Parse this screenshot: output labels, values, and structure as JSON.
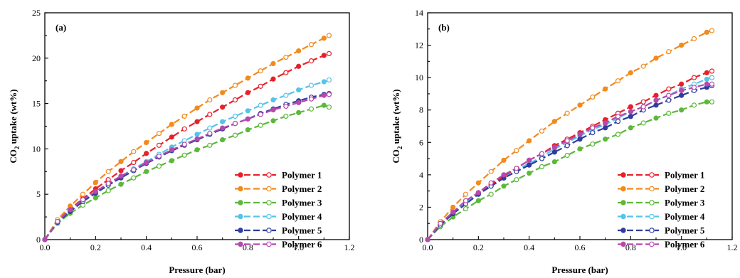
{
  "chart_data": [
    {
      "type": "line",
      "panel_label": "(a)",
      "xlabel": "Pressure (bar)",
      "ylabel": "CO2 uptake (wt%)",
      "ylabel_parts": {
        "pre": "CO",
        "sub": "2",
        "post": " uptake (wt%)"
      },
      "xlim": [
        0,
        1.2
      ],
      "ylim": [
        0,
        25
      ],
      "xticks": [
        "0.0",
        "0.2",
        "0.4",
        "0.6",
        "0.8",
        "1.0",
        "1.2"
      ],
      "yticks": [
        "0",
        "5",
        "10",
        "15",
        "20",
        "25"
      ],
      "legend_position": "bottom-right",
      "grid": false,
      "series": [
        {
          "name": "Polymer 1",
          "color": "#e8202a",
          "x": [
            0,
            0.05,
            0.1,
            0.15,
            0.2,
            0.25,
            0.3,
            0.35,
            0.4,
            0.45,
            0.5,
            0.55,
            0.6,
            0.65,
            0.7,
            0.75,
            0.8,
            0.85,
            0.9,
            0.95,
            1.0,
            1.05,
            1.1,
            1.12
          ],
          "y": [
            0,
            2.0,
            3.4,
            4.5,
            5.6,
            6.6,
            7.6,
            8.5,
            9.5,
            10.4,
            11.3,
            12.2,
            13.0,
            13.8,
            14.6,
            15.4,
            16.2,
            16.9,
            17.7,
            18.4,
            19.1,
            19.7,
            20.3,
            20.5
          ]
        },
        {
          "name": "Polymer 2",
          "color": "#f28a1c",
          "x": [
            0,
            0.05,
            0.1,
            0.15,
            0.2,
            0.25,
            0.3,
            0.35,
            0.4,
            0.45,
            0.5,
            0.55,
            0.6,
            0.65,
            0.7,
            0.75,
            0.8,
            0.85,
            0.9,
            0.95,
            1.0,
            1.05,
            1.1,
            1.12
          ],
          "y": [
            0,
            2.2,
            3.7,
            5.0,
            6.3,
            7.5,
            8.6,
            9.7,
            10.7,
            11.7,
            12.7,
            13.6,
            14.5,
            15.4,
            16.2,
            17.0,
            17.8,
            18.6,
            19.4,
            20.1,
            20.8,
            21.5,
            22.2,
            22.5
          ]
        },
        {
          "name": "Polymer 3",
          "color": "#5cb83a",
          "x": [
            0,
            0.05,
            0.1,
            0.15,
            0.2,
            0.25,
            0.3,
            0.35,
            0.4,
            0.45,
            0.5,
            0.55,
            0.6,
            0.65,
            0.7,
            0.75,
            0.8,
            0.85,
            0.9,
            0.95,
            1.0,
            1.05,
            1.1,
            1.12
          ],
          "y": [
            0,
            1.8,
            2.9,
            3.8,
            4.6,
            5.4,
            6.1,
            6.8,
            7.5,
            8.1,
            8.7,
            9.3,
            9.9,
            10.4,
            11.0,
            11.5,
            12.1,
            12.6,
            13.1,
            13.6,
            14.0,
            14.4,
            14.8,
            14.6
          ]
        },
        {
          "name": "Polymer 4",
          "color": "#56c3e8",
          "x": [
            0,
            0.05,
            0.1,
            0.15,
            0.2,
            0.25,
            0.3,
            0.35,
            0.4,
            0.45,
            0.5,
            0.55,
            0.6,
            0.65,
            0.7,
            0.75,
            0.8,
            0.85,
            0.9,
            0.95,
            1.0,
            1.05,
            1.1,
            1.12
          ],
          "y": [
            0,
            1.9,
            3.2,
            4.3,
            5.2,
            6.1,
            7.0,
            7.8,
            8.6,
            9.4,
            10.2,
            10.9,
            11.6,
            12.3,
            13.0,
            13.6,
            14.2,
            14.8,
            15.4,
            15.9,
            16.5,
            17.0,
            17.4,
            17.6
          ]
        },
        {
          "name": "Polymer 5",
          "color": "#2f3d9c",
          "x": [
            0,
            0.05,
            0.1,
            0.15,
            0.2,
            0.25,
            0.3,
            0.35,
            0.4,
            0.45,
            0.5,
            0.55,
            0.6,
            0.65,
            0.7,
            0.75,
            0.8,
            0.85,
            0.9,
            0.95,
            1.0,
            1.05,
            1.1,
            1.12
          ],
          "y": [
            0,
            1.9,
            3.1,
            4.2,
            5.1,
            6.0,
            6.8,
            7.6,
            8.4,
            9.1,
            9.8,
            10.4,
            11.0,
            11.6,
            12.2,
            12.8,
            13.3,
            13.9,
            14.4,
            14.9,
            15.3,
            15.7,
            16.0,
            16.1
          ]
        },
        {
          "name": "Polymer 6",
          "color": "#b649ad",
          "x": [
            0,
            0.05,
            0.1,
            0.15,
            0.2,
            0.25,
            0.3,
            0.35,
            0.4,
            0.45,
            0.5,
            0.55,
            0.6,
            0.65,
            0.7,
            0.75,
            0.8,
            0.85,
            0.9,
            0.95,
            1.0,
            1.05,
            1.1,
            1.12
          ],
          "y": [
            0,
            2.0,
            3.3,
            4.4,
            5.3,
            6.2,
            7.0,
            7.7,
            8.5,
            9.2,
            9.9,
            10.5,
            11.1,
            11.7,
            12.3,
            12.8,
            13.3,
            13.8,
            14.3,
            14.7,
            15.1,
            15.5,
            15.9,
            16.0
          ]
        }
      ]
    },
    {
      "type": "line",
      "panel_label": "(b)",
      "xlabel": "Pressure (bar)",
      "ylabel": "CO2 uptake (wt%)",
      "ylabel_parts": {
        "pre": "CO",
        "sub": "2",
        "post": " uptake (wt%)"
      },
      "xlim": [
        0,
        1.2
      ],
      "ylim": [
        0,
        14
      ],
      "xticks": [
        "0.0",
        "0.2",
        "0.4",
        "0.6",
        "0.8",
        "1.0",
        "1.2"
      ],
      "yticks": [
        "0",
        "2",
        "4",
        "6",
        "8",
        "10",
        "12",
        "14"
      ],
      "legend_position": "bottom-right",
      "grid": false,
      "series": [
        {
          "name": "Polymer 1",
          "color": "#e8202a",
          "x": [
            0,
            0.05,
            0.1,
            0.15,
            0.2,
            0.25,
            0.3,
            0.35,
            0.4,
            0.45,
            0.5,
            0.55,
            0.6,
            0.65,
            0.7,
            0.75,
            0.8,
            0.85,
            0.9,
            0.95,
            1.0,
            1.05,
            1.1,
            1.12
          ],
          "y": [
            0,
            0.9,
            1.6,
            2.3,
            2.9,
            3.4,
            3.9,
            4.4,
            4.9,
            5.3,
            5.8,
            6.2,
            6.6,
            7.0,
            7.4,
            7.8,
            8.2,
            8.5,
            8.9,
            9.3,
            9.6,
            10.0,
            10.3,
            10.4
          ]
        },
        {
          "name": "Polymer 2",
          "color": "#f28a1c",
          "x": [
            0,
            0.05,
            0.1,
            0.15,
            0.2,
            0.25,
            0.3,
            0.35,
            0.4,
            0.45,
            0.5,
            0.55,
            0.6,
            0.65,
            0.7,
            0.75,
            0.8,
            0.85,
            0.9,
            0.95,
            1.0,
            1.05,
            1.1,
            1.12
          ],
          "y": [
            0,
            1.1,
            2.0,
            2.8,
            3.5,
            4.2,
            4.9,
            5.5,
            6.1,
            6.7,
            7.3,
            7.8,
            8.3,
            8.8,
            9.3,
            9.8,
            10.3,
            10.7,
            11.2,
            11.6,
            12.0,
            12.4,
            12.8,
            12.9
          ]
        },
        {
          "name": "Polymer 3",
          "color": "#5cb83a",
          "x": [
            0,
            0.05,
            0.1,
            0.15,
            0.2,
            0.25,
            0.3,
            0.35,
            0.4,
            0.45,
            0.5,
            0.55,
            0.6,
            0.65,
            0.7,
            0.75,
            0.8,
            0.85,
            0.9,
            0.95,
            1.0,
            1.05,
            1.1,
            1.12
          ],
          "y": [
            0,
            0.8,
            1.4,
            1.9,
            2.4,
            2.8,
            3.3,
            3.7,
            4.1,
            4.5,
            4.8,
            5.2,
            5.6,
            5.9,
            6.2,
            6.5,
            6.9,
            7.2,
            7.5,
            7.8,
            8.0,
            8.3,
            8.5,
            8.5
          ]
        },
        {
          "name": "Polymer 4",
          "color": "#56c3e8",
          "x": [
            0,
            0.05,
            0.1,
            0.15,
            0.2,
            0.25,
            0.3,
            0.35,
            0.4,
            0.45,
            0.5,
            0.55,
            0.6,
            0.65,
            0.7,
            0.75,
            0.8,
            0.85,
            0.9,
            0.95,
            1.0,
            1.05,
            1.1,
            1.12
          ],
          "y": [
            0,
            0.9,
            1.6,
            2.3,
            2.8,
            3.3,
            3.8,
            4.3,
            4.7,
            5.1,
            5.6,
            6.0,
            6.4,
            6.8,
            7.1,
            7.5,
            7.9,
            8.2,
            8.6,
            8.9,
            9.3,
            9.6,
            9.9,
            10.0
          ]
        },
        {
          "name": "Polymer 5",
          "color": "#2f3d9c",
          "x": [
            0,
            0.05,
            0.1,
            0.15,
            0.2,
            0.25,
            0.3,
            0.35,
            0.4,
            0.45,
            0.5,
            0.55,
            0.6,
            0.65,
            0.7,
            0.75,
            0.8,
            0.85,
            0.9,
            0.95,
            1.0,
            1.05,
            1.1,
            1.12
          ],
          "y": [
            0,
            0.9,
            1.6,
            2.2,
            2.8,
            3.3,
            3.8,
            4.2,
            4.6,
            5.0,
            5.4,
            5.8,
            6.2,
            6.6,
            6.9,
            7.3,
            7.6,
            8.0,
            8.3,
            8.6,
            8.9,
            9.2,
            9.4,
            9.5
          ]
        },
        {
          "name": "Polymer 6",
          "color": "#b649ad",
          "x": [
            0,
            0.05,
            0.1,
            0.15,
            0.2,
            0.25,
            0.3,
            0.35,
            0.4,
            0.45,
            0.5,
            0.55,
            0.6,
            0.65,
            0.7,
            0.75,
            0.8,
            0.85,
            0.9,
            0.95,
            1.0,
            1.05,
            1.1,
            1.12
          ],
          "y": [
            0,
            1.0,
            1.7,
            2.4,
            2.9,
            3.5,
            4.0,
            4.4,
            4.9,
            5.3,
            5.7,
            6.1,
            6.5,
            6.9,
            7.2,
            7.6,
            7.9,
            8.2,
            8.6,
            8.9,
            9.2,
            9.4,
            9.6,
            9.6
          ]
        }
      ]
    }
  ]
}
